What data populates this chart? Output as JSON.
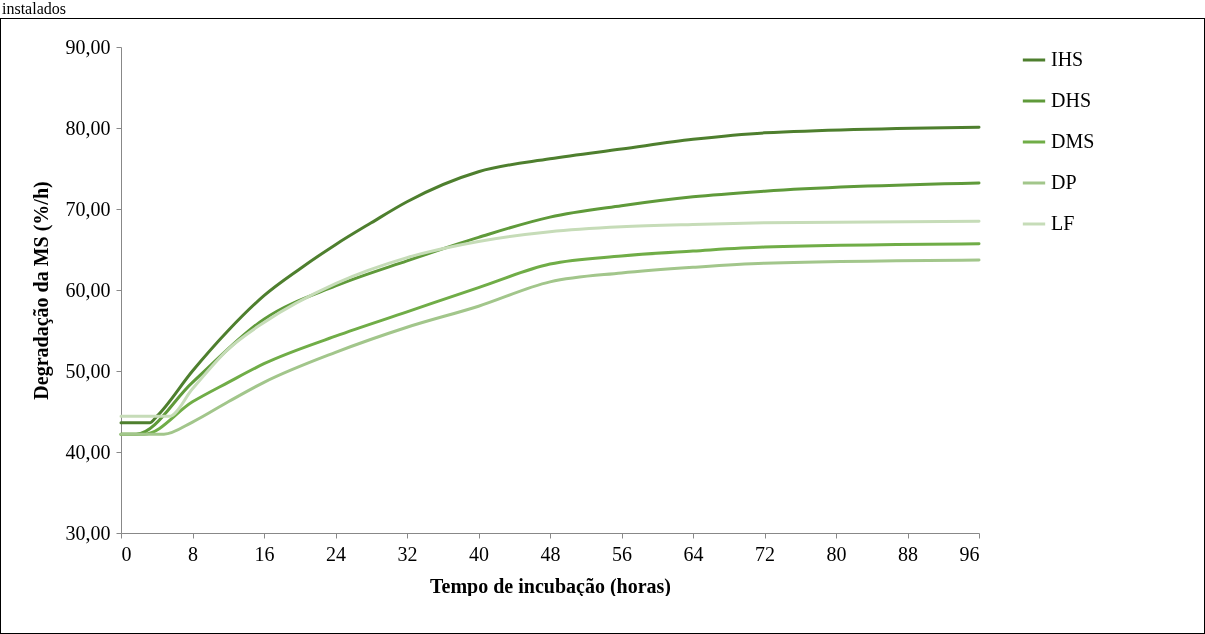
{
  "chart_data": {
    "type": "line",
    "xlabel": "Tempo  de incubação (horas)",
    "ylabel": "Degradação da MS (%/h)",
    "annotations": [
      "instalados"
    ],
    "xlim": [
      0,
      96
    ],
    "xticks": [
      0,
      8,
      16,
      24,
      32,
      40,
      48,
      56,
      64,
      72,
      80,
      88,
      96
    ],
    "ylim": [
      30,
      90
    ],
    "yticks": [
      {
        "value": 30,
        "label": "30,00"
      },
      {
        "value": 40,
        "label": "40,00"
      },
      {
        "value": 50,
        "label": "50,00"
      },
      {
        "value": 60,
        "label": "60,00"
      },
      {
        "value": 70,
        "label": "70,00"
      },
      {
        "value": 80,
        "label": "80,00"
      },
      {
        "value": 90,
        "label": "90,00"
      }
    ],
    "grid": false,
    "legend": "right",
    "marker": "none",
    "line_style": "solid",
    "series": [
      {
        "name": "IHS",
        "color": "#4e7f2e",
        "x": [
          0,
          3.2,
          4,
          8,
          12,
          16,
          20,
          24,
          28,
          32,
          40,
          48,
          56,
          64,
          72,
          96
        ],
        "values": [
          43.6,
          43.6,
          44.4,
          50,
          55,
          59.3,
          62.6,
          65.6,
          68.3,
          70.9,
          74.6,
          76.2,
          77.4,
          78.6,
          79.4,
          80.1
        ]
      },
      {
        "name": "DHS",
        "color": "#5f9a3a",
        "x": [
          0,
          1.7,
          8,
          16,
          24,
          32,
          40,
          48,
          56,
          64,
          72,
          96
        ],
        "values": [
          42.2,
          42.2,
          48.6,
          56.4,
          60.5,
          63.6,
          66.5,
          69,
          70.4,
          71.5,
          72.2,
          73.2
        ]
      },
      {
        "name": "DMS",
        "color": "#70ad47",
        "x": [
          0,
          2.6,
          8,
          12,
          16,
          24,
          32,
          40,
          48,
          56,
          64,
          72,
          96
        ],
        "values": [
          42.2,
          42.2,
          46.2,
          48.6,
          50.9,
          54.3,
          57.3,
          60.3,
          63.2,
          64.2,
          64.8,
          65.3,
          65.7
        ]
      },
      {
        "name": "DP",
        "color": "#a2c68b",
        "x": [
          0,
          4.8,
          8,
          12,
          16,
          24,
          32,
          40,
          48,
          56,
          64,
          72,
          96
        ],
        "values": [
          42.2,
          42.2,
          43.7,
          46.2,
          48.6,
          52.3,
          55.4,
          58,
          61,
          62.1,
          62.8,
          63.3,
          63.7
        ]
      },
      {
        "name": "LF",
        "color": "#c6dcb8",
        "x": [
          0,
          5.4,
          8,
          12,
          16,
          24,
          32,
          40,
          48,
          56,
          64,
          72,
          96
        ],
        "values": [
          44.4,
          44.4,
          47.8,
          52.7,
          56,
          60.8,
          64,
          66,
          67.2,
          67.8,
          68.1,
          68.3,
          68.5
        ]
      }
    ]
  }
}
